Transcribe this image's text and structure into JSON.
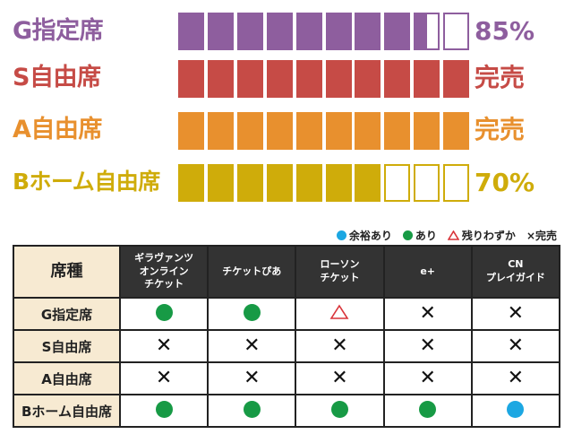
{
  "colors": {
    "g": "#8e5e9e",
    "s": "#c64b46",
    "a": "#e8902e",
    "b": "#cfac0a",
    "green": "#179a45",
    "blue": "#1ca7e2",
    "red": "#d9343a"
  },
  "chart_data": {
    "type": "bar",
    "blocks_total": 10,
    "rows": [
      {
        "label": "G指定席",
        "status": "85%",
        "filled_blocks": 8.5,
        "color": "#8e5e9e"
      },
      {
        "label": "S自由席",
        "status": "完売",
        "filled_blocks": 10,
        "color": "#c64b46"
      },
      {
        "label": "A自由席",
        "status": "完売",
        "filled_blocks": 10,
        "color": "#e8902e"
      },
      {
        "label": "Bホーム自由席",
        "status": "70%",
        "filled_blocks": 7,
        "color": "#cfac0a"
      }
    ]
  },
  "legend": {
    "plenty": "余裕あり",
    "available": "あり",
    "few": "残りわずか",
    "soldout": "×完売"
  },
  "table": {
    "seat_header": "席種",
    "vendors": [
      [
        "ギラヴァンツ",
        "オンライン",
        "チケット"
      ],
      [
        "チケットぴあ"
      ],
      [
        "ローソン",
        "チケット"
      ],
      [
        "e+"
      ],
      [
        "CN",
        "プレイガイド"
      ]
    ],
    "rows": [
      {
        "seat": "G指定席",
        "marks": [
          "green",
          "green",
          "triangle",
          "x",
          "x"
        ]
      },
      {
        "seat": "S自由席",
        "marks": [
          "x",
          "x",
          "x",
          "x",
          "x"
        ]
      },
      {
        "seat": "A自由席",
        "marks": [
          "x",
          "x",
          "x",
          "x",
          "x"
        ]
      },
      {
        "seat": "Bホーム自由席",
        "marks": [
          "green",
          "green",
          "green",
          "green",
          "blue"
        ]
      }
    ]
  }
}
